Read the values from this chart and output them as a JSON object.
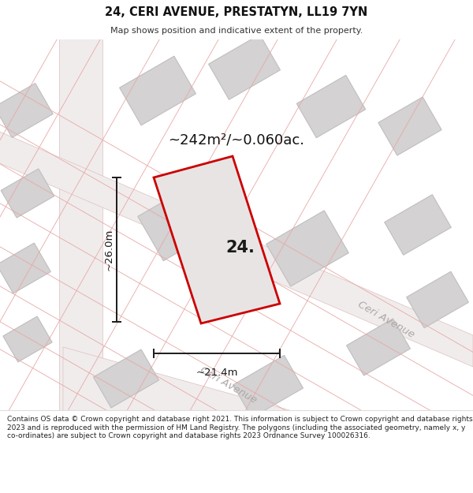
{
  "title": "24, CERI AVENUE, PRESTATYN, LL19 7YN",
  "subtitle": "Map shows position and indicative extent of the property.",
  "footer": "Contains OS data © Crown copyright and database right 2021. This information is subject to Crown copyright and database rights 2023 and is reproduced with the permission of HM Land Registry. The polygons (including the associated geometry, namely x, y co-ordinates) are subject to Crown copyright and database rights 2023 Ordnance Survey 100026316.",
  "area_label": "~242m²/~0.060ac.",
  "house_number": "24.",
  "width_label": "~21.4m",
  "height_label": "~26.0m",
  "map_bg": "#f0edee",
  "block_fc": "#d4d2d2",
  "block_ec": "#c0bebe",
  "road_fc": "#f0ecec",
  "road_ec": "#e0c0c0",
  "prop_line_color": "#e8a8a8",
  "plot_fc": "#e8e4e4",
  "plot_ec": "#cc0000",
  "dim_color": "#1a1a1a",
  "text_color": "#111111",
  "street_color": "#b0a8a8",
  "footer_text_color": "#222222",
  "title_color": "#111111"
}
